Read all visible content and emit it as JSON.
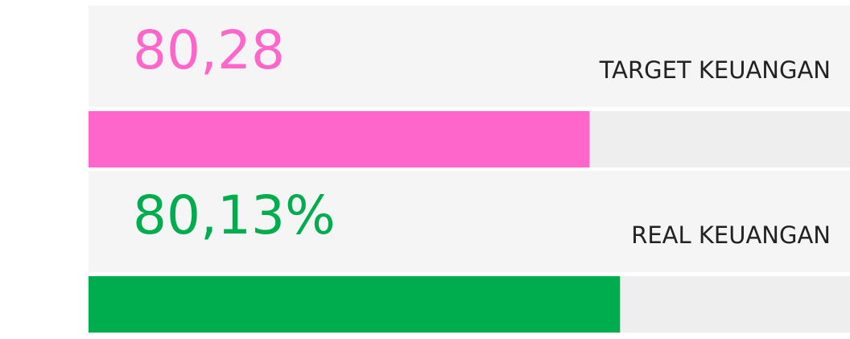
{
  "items": [
    {
      "value_label": "80,28",
      "label": "TARGET KEUANGAN",
      "color": "#ff66cc",
      "progress": 65.8
    },
    {
      "value_label": "80,13%",
      "label": "REAL KEUANGAN",
      "color": "#00ad4e",
      "progress": 69.8
    }
  ],
  "xlim": [
    0,
    100
  ]
}
